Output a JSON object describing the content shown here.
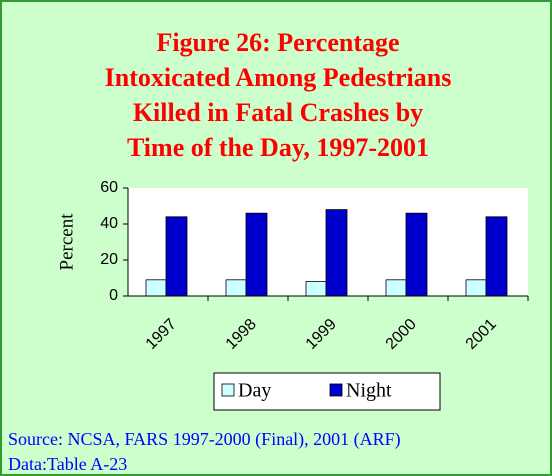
{
  "chart_data": {
    "type": "bar",
    "title": [
      "Figure 26: Percentage",
      "Intoxicated Among Pedestrians",
      "Killed in Fatal Crashes by",
      "Time of the Day, 1997-2001"
    ],
    "y_label": "Percent",
    "categories": [
      "1997",
      "1998",
      "1999",
      "2000",
      "2001"
    ],
    "series": [
      {
        "name": "Day",
        "color": "#ccffff",
        "values": [
          9,
          9,
          8,
          9,
          9
        ]
      },
      {
        "name": "Night",
        "color": "#0000cc",
        "values": [
          44,
          46,
          48,
          46,
          44
        ]
      }
    ],
    "ylim": [
      0,
      60
    ],
    "yticks": [
      0,
      20,
      40,
      60
    ],
    "source": [
      "Source: NCSA, FARS 1997-2000 (Final), 2001 (ARF)",
      "Data:Table A-23"
    ]
  }
}
